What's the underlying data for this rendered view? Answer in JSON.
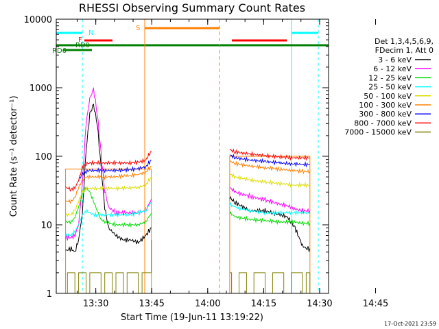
{
  "chart_data": {
    "type": "line",
    "title": "RHESSI Observing Summary Count Rates",
    "xlabel": "Start Time (19-Jun-11 13:19:22)",
    "ylabel": "Count Rate (s⁻¹ detector⁻¹)",
    "x_unit": "minutes since 13:19:22",
    "xlim": [
      0,
      73
    ],
    "ylim": [
      1,
      10000
    ],
    "yscale": "log",
    "x_ticks": [
      {
        "label": "13:30",
        "x": 10.6
      },
      {
        "label": "13:45",
        "x": 25.6
      },
      {
        "label": "14:00",
        "x": 40.6
      },
      {
        "label": "14:15",
        "x": 55.6
      },
      {
        "label": "14:30",
        "x": 70.6
      },
      {
        "label": "14:45",
        "x": 85.6
      }
    ],
    "y_ticks": [
      {
        "label": "1",
        "v": 1
      },
      {
        "label": "10",
        "v": 10
      },
      {
        "label": "100",
        "v": 100
      },
      {
        "label": "1000",
        "v": 1000
      },
      {
        "label": "10000",
        "v": 10000
      }
    ],
    "legend": {
      "header1": "Det 1,3,4,5,6,9,",
      "header2": "FDecim 1, Att 0",
      "placement": "right"
    },
    "series": [
      {
        "name": "3 - 6 keV",
        "color": "#000000",
        "segments": [
          [
            [
              2.5,
              4.2
            ],
            [
              4,
              4.5
            ],
            [
              5,
              4
            ],
            [
              6,
              6
            ],
            [
              7,
              15
            ],
            [
              8,
              120
            ],
            [
              9,
              420
            ],
            [
              10,
              560
            ],
            [
              11,
              300
            ],
            [
              12,
              70
            ],
            [
              13,
              18
            ],
            [
              14,
              9
            ],
            [
              16,
              7
            ],
            [
              18,
              6
            ],
            [
              20,
              6
            ],
            [
              22,
              5.5
            ],
            [
              24,
              7
            ],
            [
              25.5,
              9
            ]
          ],
          [
            [
              46.5,
              25
            ],
            [
              48,
              21
            ],
            [
              52,
              16
            ],
            [
              56,
              16
            ],
            [
              58,
              15
            ],
            [
              60,
              14
            ],
            [
              62,
              13
            ],
            [
              64,
              9
            ],
            [
              66,
              5
            ],
            [
              67,
              4.5
            ],
            [
              68,
              4.5
            ]
          ]
        ]
      },
      {
        "name": "6 - 12 keV",
        "color": "#ff00ff",
        "segments": [
          [
            [
              2.5,
              6.5
            ],
            [
              4,
              6.5
            ],
            [
              5,
              7
            ],
            [
              6,
              10
            ],
            [
              7,
              40
            ],
            [
              8,
              300
            ],
            [
              9,
              700
            ],
            [
              10,
              950
            ],
            [
              11,
              420
            ],
            [
              12,
              110
            ],
            [
              13,
              32
            ],
            [
              14,
              18
            ],
            [
              16,
              15
            ],
            [
              18,
              15
            ],
            [
              20,
              15
            ],
            [
              22,
              15
            ],
            [
              24,
              16
            ],
            [
              25.5,
              24
            ]
          ],
          [
            [
              46.5,
              35
            ],
            [
              48,
              30
            ],
            [
              52,
              26
            ],
            [
              56,
              23
            ],
            [
              60,
              20
            ],
            [
              62,
              19
            ],
            [
              64,
              17
            ],
            [
              66,
              16
            ],
            [
              68,
              16
            ]
          ]
        ]
      },
      {
        "name": "12 - 25 keV",
        "color": "#00dd00",
        "segments": [
          [
            [
              2.5,
              11
            ],
            [
              4,
              11
            ],
            [
              5,
              13
            ],
            [
              6,
              18
            ],
            [
              7,
              28
            ],
            [
              8,
              35
            ],
            [
              9,
              30
            ],
            [
              10,
              22
            ],
            [
              11,
              16
            ],
            [
              12,
              12
            ],
            [
              13,
              11
            ],
            [
              16,
              10
            ],
            [
              18,
              10
            ],
            [
              20,
              10
            ],
            [
              22,
              10
            ],
            [
              24,
              11
            ],
            [
              25.5,
              15
            ]
          ],
          [
            [
              46.5,
              15
            ],
            [
              48,
              13
            ],
            [
              52,
              12
            ],
            [
              56,
              11.5
            ],
            [
              60,
              11
            ],
            [
              62,
              11
            ],
            [
              64,
              11
            ],
            [
              66,
              10.5
            ],
            [
              68,
              10.5
            ]
          ]
        ]
      },
      {
        "name": "25 - 50 keV",
        "color": "#00ffff",
        "segments": [
          [
            [
              2.5,
              7
            ],
            [
              4,
              7
            ],
            [
              5,
              8
            ],
            [
              6,
              10
            ],
            [
              7,
              14
            ],
            [
              8,
              16
            ],
            [
              9,
              15
            ],
            [
              10,
              14
            ],
            [
              11,
              14
            ],
            [
              13,
              14
            ],
            [
              16,
              14
            ],
            [
              18,
              14
            ],
            [
              20,
              14
            ],
            [
              22,
              15
            ],
            [
              24,
              16
            ],
            [
              25.5,
              22
            ]
          ],
          [
            [
              46.5,
              20
            ],
            [
              48,
              18
            ],
            [
              52,
              16
            ],
            [
              56,
              15
            ],
            [
              60,
              15
            ],
            [
              62,
              15
            ],
            [
              64,
              15
            ],
            [
              66,
              15
            ],
            [
              68,
              15
            ]
          ]
        ]
      },
      {
        "name": "50 - 100 keV",
        "color": "#dddd00",
        "segments": [
          [
            [
              2.5,
              14
            ],
            [
              4,
              14
            ],
            [
              5,
              16
            ],
            [
              6,
              22
            ],
            [
              7,
              30
            ],
            [
              8,
              34
            ],
            [
              9,
              34
            ],
            [
              10,
              34
            ],
            [
              12,
              34
            ],
            [
              14,
              34
            ],
            [
              16,
              34
            ],
            [
              18,
              34
            ],
            [
              20,
              35
            ],
            [
              22,
              35
            ],
            [
              24,
              38
            ],
            [
              25.5,
              50
            ]
          ],
          [
            [
              46.5,
              55
            ],
            [
              48,
              50
            ],
            [
              52,
              45
            ],
            [
              56,
              42
            ],
            [
              60,
              40
            ],
            [
              62,
              39
            ],
            [
              64,
              38
            ],
            [
              66,
              38
            ],
            [
              68,
              38
            ]
          ]
        ]
      },
      {
        "name": "100 - 300 keV",
        "color": "#ff8000",
        "segments": [
          [
            [
              2.5,
              22
            ],
            [
              4,
              22
            ],
            [
              5,
              25
            ],
            [
              6,
              35
            ],
            [
              7,
              45
            ],
            [
              8,
              50
            ],
            [
              9,
              50
            ],
            [
              10,
              50
            ],
            [
              12,
              50
            ],
            [
              14,
              50
            ],
            [
              16,
              50
            ],
            [
              18,
              52
            ],
            [
              20,
              52
            ],
            [
              22,
              55
            ],
            [
              24,
              58
            ],
            [
              25.5,
              72
            ]
          ],
          [
            [
              46.5,
              85
            ],
            [
              48,
              78
            ],
            [
              52,
              72
            ],
            [
              56,
              68
            ],
            [
              60,
              65
            ],
            [
              62,
              63
            ],
            [
              64,
              62
            ],
            [
              66,
              60
            ],
            [
              68,
              60
            ]
          ]
        ]
      },
      {
        "name": "300 - 800 keV",
        "color": "#0000ff",
        "segments": [
          [
            [
              6,
              45
            ],
            [
              7,
              55
            ],
            [
              8,
              60
            ],
            [
              9,
              62
            ],
            [
              10,
              62
            ],
            [
              12,
              62
            ],
            [
              14,
              62
            ],
            [
              16,
              62
            ],
            [
              18,
              63
            ],
            [
              20,
              64
            ],
            [
              22,
              66
            ],
            [
              24,
              70
            ],
            [
              25.5,
              88
            ]
          ],
          [
            [
              46.5,
              105
            ],
            [
              48,
              95
            ],
            [
              52,
              88
            ],
            [
              56,
              84
            ],
            [
              60,
              80
            ],
            [
              62,
              78
            ],
            [
              64,
              77
            ],
            [
              66,
              76
            ],
            [
              68,
              76
            ]
          ]
        ]
      },
      {
        "name": "800 - 7000 keV",
        "color": "#ff0000",
        "segments": [
          [
            [
              2.5,
              35
            ],
            [
              4,
              33
            ],
            [
              5,
              34
            ],
            [
              6,
              45
            ],
            [
              7,
              68
            ],
            [
              8,
              78
            ],
            [
              9,
              80
            ],
            [
              10,
              80
            ],
            [
              12,
              80
            ],
            [
              14,
              80
            ],
            [
              16,
              80
            ],
            [
              18,
              80
            ],
            [
              20,
              80
            ],
            [
              22,
              82
            ],
            [
              24,
              88
            ],
            [
              25.5,
              120
            ]
          ],
          [
            [
              46.5,
              125
            ],
            [
              48,
              115
            ],
            [
              52,
              108
            ],
            [
              56,
              102
            ],
            [
              60,
              98
            ],
            [
              62,
              96
            ],
            [
              64,
              95
            ],
            [
              66,
              95
            ],
            [
              68,
              95
            ]
          ]
        ]
      },
      {
        "name": "7000 - 15000 keV",
        "color": "#808000",
        "segments": [
          [
            [
              2.5,
              1
            ],
            [
              3,
              2
            ],
            [
              5,
              1
            ],
            [
              6,
              2
            ],
            [
              8,
              1
            ],
            [
              9,
              2
            ],
            [
              12,
              1
            ],
            [
              13,
              2
            ],
            [
              15,
              1
            ],
            [
              16,
              2
            ],
            [
              18,
              1
            ],
            [
              19,
              2
            ],
            [
              22,
              1
            ],
            [
              23,
              2
            ],
            [
              25.5,
              6
            ]
          ],
          [
            [
              46.5,
              2
            ],
            [
              47,
              1
            ],
            [
              49,
              2
            ],
            [
              51,
              1
            ],
            [
              53,
              2
            ],
            [
              56,
              1
            ],
            [
              58,
              2
            ],
            [
              61,
              1
            ],
            [
              63,
              2
            ],
            [
              66,
              1
            ],
            [
              67,
              2
            ],
            [
              68,
              1
            ]
          ]
        ]
      }
    ],
    "flags": [
      {
        "label": "N",
        "color": "#00ffff"
      },
      {
        "label": "F",
        "color": "#ff0000"
      },
      {
        "label": "RD0",
        "color": "#008000"
      },
      {
        "label": "RD6",
        "color": "#008000"
      },
      {
        "label": "S",
        "color": "#ff8000"
      }
    ],
    "stamp": "17-Oct-2021 23:59"
  }
}
